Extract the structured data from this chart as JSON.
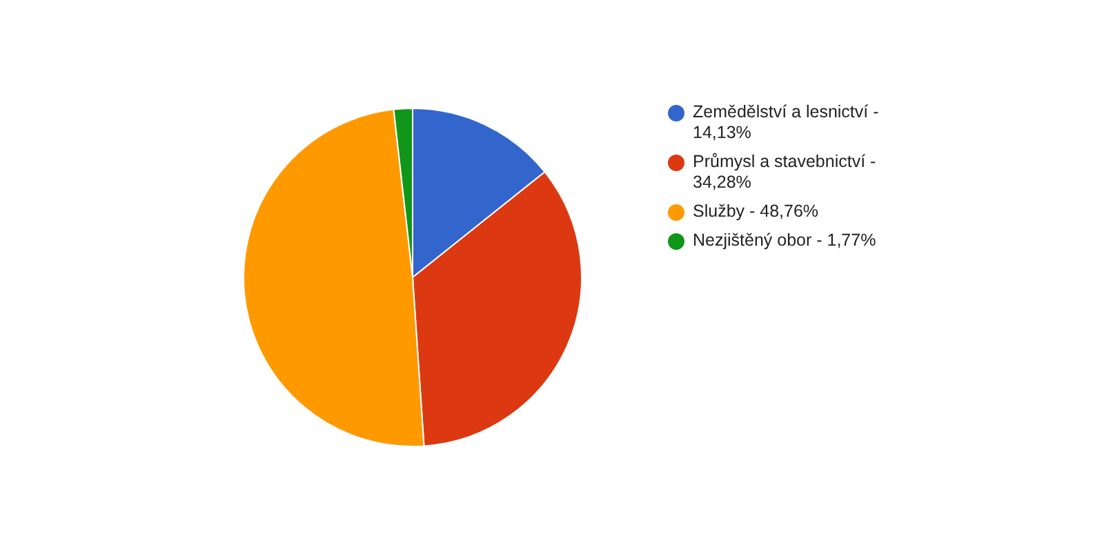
{
  "chart_data": {
    "type": "pie",
    "categories": [
      "Zemědělství a lesnictví - 14,13%",
      "Průmysl a stavebnictví - 34,28%",
      "Služby - 48,76%",
      "Nezjištěný obor - 1,77%"
    ],
    "values": [
      14.13,
      34.28,
      48.76,
      1.77
    ],
    "colors": [
      "#3366cc",
      "#dc3912",
      "#ff9900",
      "#109618"
    ],
    "legend": "right"
  }
}
